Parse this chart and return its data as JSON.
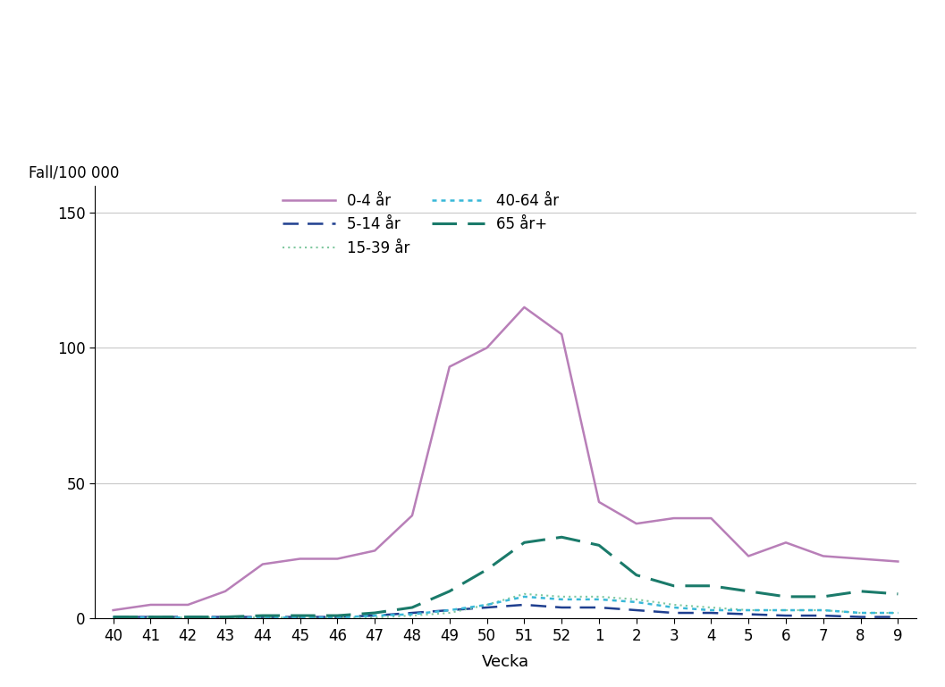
{
  "x_labels": [
    "40",
    "41",
    "42",
    "43",
    "44",
    "45",
    "46",
    "47",
    "48",
    "49",
    "50",
    "51",
    "52",
    "1",
    "2",
    "3",
    "4",
    "5",
    "6",
    "7",
    "8",
    "9"
  ],
  "x_positions": [
    0,
    1,
    2,
    3,
    4,
    5,
    6,
    7,
    8,
    9,
    10,
    11,
    12,
    13,
    14,
    15,
    16,
    17,
    18,
    19,
    20,
    21
  ],
  "series_order": [
    "0-4 år",
    "5-14 år",
    "15-39 år",
    "40-64 år",
    "65 år+"
  ],
  "series": {
    "0-4 år": {
      "values": [
        3,
        5,
        5,
        10,
        20,
        22,
        22,
        25,
        38,
        93,
        100,
        115,
        105,
        43,
        35,
        37,
        37,
        23,
        28,
        23,
        22,
        21
      ],
      "color": "#b87fb8",
      "linestyle": "solid",
      "linewidth": 1.8,
      "dashes": null
    },
    "5-14 år": {
      "values": [
        0.5,
        0.5,
        0.5,
        0.5,
        0.5,
        0.5,
        0.5,
        1,
        2,
        3,
        4,
        5,
        4,
        4,
        3,
        2,
        2,
        1.5,
        1,
        1,
        0.5,
        0.5
      ],
      "color": "#1f3f8f",
      "linestyle": "dashed",
      "linewidth": 1.8,
      "dashes": [
        7,
        4
      ]
    },
    "15-39 år": {
      "values": [
        0.3,
        0.3,
        0.3,
        0.3,
        0.3,
        0.3,
        0.3,
        0.3,
        1,
        2,
        5,
        9,
        8,
        8,
        7,
        5,
        4,
        3,
        3,
        3,
        2,
        2
      ],
      "color": "#80c8a0",
      "linestyle": "dotted",
      "linewidth": 1.5,
      "dashes": [
        1,
        2
      ]
    },
    "40-64 år": {
      "values": [
        0.3,
        0.3,
        0.3,
        0.3,
        0.3,
        0.3,
        0.3,
        1,
        1.5,
        3,
        5,
        8,
        7,
        7,
        6,
        4,
        3,
        3,
        3,
        3,
        2,
        2
      ],
      "color": "#38b8d8",
      "linestyle": "dotted",
      "linewidth": 1.8,
      "dashes": [
        2,
        2
      ]
    },
    "65 år+": {
      "values": [
        0.5,
        0.5,
        0.5,
        0.5,
        1,
        1,
        1,
        2,
        4,
        10,
        18,
        28,
        30,
        27,
        16,
        12,
        12,
        10,
        8,
        8,
        10,
        9
      ],
      "color": "#1a7a6a",
      "linestyle": "dashed",
      "linewidth": 2.2,
      "dashes": [
        9,
        4
      ]
    }
  },
  "ylabel": "Fall/100 000",
  "xlabel": "Vecka",
  "ylim": [
    0,
    160
  ],
  "yticks": [
    0,
    50,
    100,
    150
  ],
  "background_color": "#ffffff",
  "grid_color": "#c8c8c8",
  "legend_col1": [
    "0-4 år",
    "15-39 år",
    "65 år+"
  ],
  "legend_col2": [
    "5-14 år",
    "40-64 år"
  ]
}
